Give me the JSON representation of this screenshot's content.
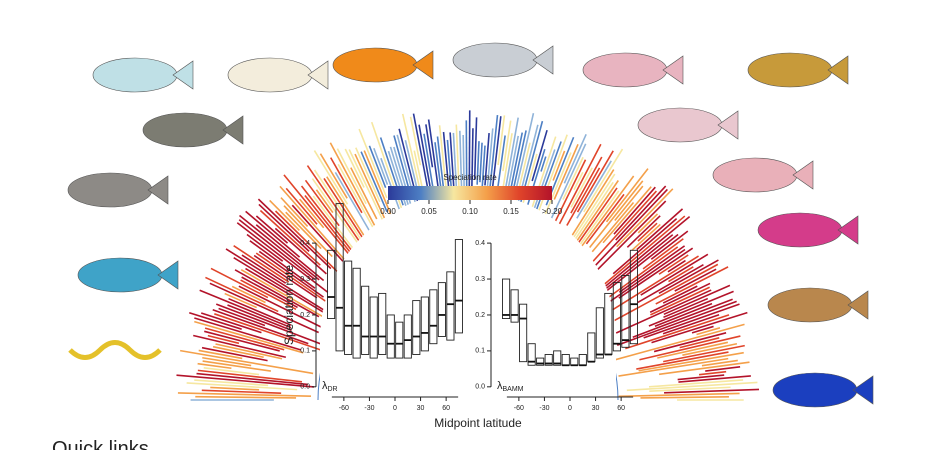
{
  "chart_data": [
    {
      "type": "box",
      "y_label": "Speciation rate",
      "x_label": "Midpoint latitude",
      "annotation": {
        "symbol": "λ",
        "subscript": "DR"
      },
      "x": [
        -75,
        -65,
        -55,
        -45,
        -35,
        -25,
        -15,
        -5,
        5,
        15,
        25,
        35,
        45,
        55,
        65,
        75
      ],
      "q1": [
        0.19,
        0.1,
        0.09,
        0.08,
        0.09,
        0.08,
        0.09,
        0.08,
        0.08,
        0.08,
        0.09,
        0.1,
        0.12,
        0.14,
        0.13,
        0.15
      ],
      "median": [
        0.25,
        0.22,
        0.17,
        0.17,
        0.14,
        0.14,
        0.14,
        0.12,
        0.12,
        0.13,
        0.14,
        0.15,
        0.17,
        0.2,
        0.23,
        0.24
      ],
      "q3": [
        0.38,
        0.51,
        0.35,
        0.33,
        0.28,
        0.25,
        0.26,
        0.2,
        0.18,
        0.2,
        0.24,
        0.25,
        0.27,
        0.29,
        0.32,
        0.41
      ],
      "xlim": [
        -88,
        88
      ],
      "xticks": [
        -60,
        -30,
        0,
        30,
        60
      ],
      "ylim": [
        -0.02,
        0.52
      ],
      "yticks": [
        {
          "value": 0,
          "label": "0.0"
        },
        {
          "value": 0.1,
          "label": "0.1"
        },
        {
          "value": 0.2,
          "label": "0.2"
        },
        {
          "value": 0.3,
          "label": "0.3"
        },
        {
          "value": 0.4,
          "label": "0.4"
        }
      ]
    },
    {
      "type": "box",
      "annotation": {
        "symbol": "λ",
        "subscript": "BAMM"
      },
      "x": [
        -75,
        -65,
        -55,
        -45,
        -35,
        -25,
        -15,
        -5,
        5,
        15,
        25,
        35,
        45,
        55,
        65,
        75
      ],
      "q1": [
        0.19,
        0.18,
        0.07,
        0.06,
        0.06,
        0.06,
        0.06,
        0.06,
        0.06,
        0.06,
        0.07,
        0.08,
        0.09,
        0.1,
        0.11,
        0.12
      ],
      "median": [
        0.2,
        0.2,
        0.19,
        0.07,
        0.065,
        0.065,
        0.065,
        0.06,
        0.06,
        0.06,
        0.07,
        0.09,
        0.09,
        0.12,
        0.13,
        0.23
      ],
      "q3": [
        0.3,
        0.27,
        0.23,
        0.12,
        0.08,
        0.09,
        0.1,
        0.09,
        0.08,
        0.09,
        0.15,
        0.22,
        0.26,
        0.29,
        0.31,
        0.38
      ],
      "xlim": [
        -88,
        88
      ],
      "xticks": [
        -60,
        -30,
        0,
        30,
        60
      ],
      "ylim": [
        -0.02,
        0.52
      ],
      "yticks": [
        {
          "value": 0,
          "label": "0.0"
        },
        {
          "value": 0.1,
          "label": "0.1"
        },
        {
          "value": 0.2,
          "label": "0.2"
        },
        {
          "value": 0.3,
          "label": "0.3"
        },
        {
          "value": 0.4,
          "label": "0.4"
        }
      ]
    },
    {
      "type": "colorbar",
      "title": "Speciation rate",
      "colors": [
        "#2b3a9a",
        "#4d7fc4",
        "#f6e7a0",
        "#f4a04a",
        "#e0442a",
        "#b3132a"
      ],
      "xlim": [
        0,
        0.2
      ],
      "xticks": [
        {
          "value": 0,
          "label": "0.00"
        },
        {
          "value": 0.05,
          "label": "0.05"
        },
        {
          "value": 0.1,
          "label": "0.10"
        },
        {
          "value": 0.15,
          "label": "0.15"
        },
        {
          "value": 0.2,
          "label": ">0.20"
        }
      ]
    }
  ],
  "page_text": {
    "quick_links": "Quick links"
  }
}
